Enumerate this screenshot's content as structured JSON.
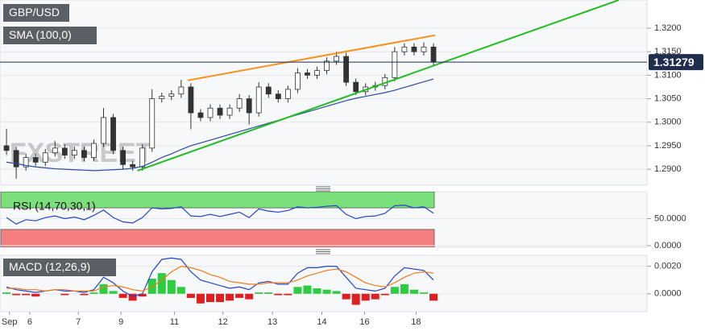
{
  "chart_data": [
    {
      "type": "candlestick",
      "title": "GBP/USD",
      "watermark": "FXSTREET",
      "color": "#333333",
      "grid": true,
      "xlim": [
        -0.67,
        66
      ],
      "ylim": [
        1.2866,
        1.326
      ],
      "yticks": [
        {
          "value": 1.29,
          "label": "1.2900"
        },
        {
          "value": 1.295,
          "label": "1.2950"
        },
        {
          "value": 1.3,
          "label": "1.3000"
        },
        {
          "value": 1.305,
          "label": "1.3050"
        },
        {
          "value": 1.31,
          "label": "1.3100"
        },
        {
          "value": 1.315,
          "label": "1.3150"
        },
        {
          "value": 1.32,
          "label": "1.3200"
        }
      ],
      "open": [
        1.295,
        1.294,
        1.2905,
        1.2925,
        1.2915,
        1.2935,
        1.2945,
        1.293,
        1.294,
        1.2925,
        1.2955,
        1.301,
        1.294,
        1.291,
        1.2905,
        1.2945,
        1.305,
        1.3055,
        1.306,
        1.3075,
        1.302,
        1.301,
        1.303,
        1.3015,
        1.303,
        1.305,
        1.302,
        1.3075,
        1.306,
        1.305,
        1.307,
        1.3105,
        1.31,
        1.311,
        1.313,
        1.314,
        1.3085,
        1.3065,
        1.3075,
        1.3078,
        1.3095,
        1.315,
        1.316,
        1.315,
        1.316
      ],
      "high": [
        1.2986,
        1.2948,
        1.2933,
        1.2933,
        1.2943,
        1.296,
        1.2953,
        1.2948,
        1.2948,
        1.2963,
        1.303,
        1.3018,
        1.2948,
        1.2918,
        1.2953,
        1.307,
        1.3063,
        1.3068,
        1.309,
        1.3083,
        1.3028,
        1.3038,
        1.3038,
        1.3038,
        1.306,
        1.3058,
        1.3085,
        1.3083,
        1.3068,
        1.3078,
        1.3115,
        1.3113,
        1.3118,
        1.3138,
        1.315,
        1.3148,
        1.3093,
        1.3083,
        1.3086,
        1.3103,
        1.316,
        1.3168,
        1.3168,
        1.317,
        1.3168
      ],
      "low": [
        1.293,
        1.288,
        1.2897,
        1.2907,
        1.2907,
        1.2927,
        1.2922,
        1.2922,
        1.2917,
        1.2917,
        1.2947,
        1.2932,
        1.29,
        1.2897,
        1.2897,
        1.2937,
        1.3042,
        1.3047,
        1.3052,
        1.2985,
        1.3002,
        1.3002,
        1.3007,
        1.3007,
        1.3022,
        1.2995,
        1.3012,
        1.3052,
        1.3042,
        1.3042,
        1.3062,
        1.3092,
        1.3092,
        1.3102,
        1.3122,
        1.3077,
        1.3058,
        1.3057,
        1.3067,
        1.307,
        1.3087,
        1.3142,
        1.3142,
        1.3142,
        1.312
      ],
      "close": [
        1.294,
        1.2905,
        1.2925,
        1.2915,
        1.2935,
        1.2945,
        1.293,
        1.294,
        1.2925,
        1.2955,
        1.301,
        1.294,
        1.291,
        1.2905,
        1.2945,
        1.305,
        1.3055,
        1.306,
        1.3075,
        1.302,
        1.301,
        1.303,
        1.3015,
        1.303,
        1.305,
        1.302,
        1.3075,
        1.306,
        1.305,
        1.307,
        1.3105,
        1.31,
        1.311,
        1.313,
        1.314,
        1.3085,
        1.3065,
        1.3075,
        1.3078,
        1.3095,
        1.315,
        1.316,
        1.315,
        1.316,
        1.31279
      ],
      "series": [
        {
          "name": "SMA (100,0)",
          "color": "#2b4aa0",
          "values": [
            1.2915,
            1.2912,
            1.2908,
            1.2905,
            1.2903,
            1.2901,
            1.29,
            1.2899,
            1.2898,
            1.2897,
            1.2898,
            1.2899,
            1.29,
            1.2902,
            1.2906,
            1.2915,
            1.2925,
            1.2933,
            1.2942,
            1.295,
            1.2956,
            1.2962,
            1.2968,
            1.2974,
            1.298,
            1.2986,
            1.2992,
            1.2998,
            1.3004,
            1.301,
            1.3016,
            1.3022,
            1.3028,
            1.3034,
            1.304,
            1.3046,
            1.3051,
            1.3055,
            1.3059,
            1.3063,
            1.3068,
            1.3074,
            1.308,
            1.3086,
            1.3092
          ]
        }
      ],
      "trendlines": [
        {
          "color": "#f7931e",
          "x": [
            18.67,
            44.17
          ],
          "y": [
            1.3089,
            1.3185
          ]
        },
        {
          "color": "#22bb22",
          "x": [
            13.5,
            63.1
          ],
          "y": [
            1.2897,
            1.326
          ]
        }
      ],
      "last_price": 1.31279,
      "last_price_color": "#1f2d4e"
    },
    {
      "type": "line",
      "grid": true,
      "xlim": [
        -0.67,
        66
      ],
      "ylim": [
        -3,
        100
      ],
      "yticks": [
        {
          "value": 0,
          "label": "0.0000"
        },
        {
          "value": 50,
          "label": "50.0000"
        }
      ],
      "bands": [
        {
          "from": 70,
          "to": 100,
          "color": "#7be07b"
        },
        {
          "from": -3,
          "to": 30,
          "color": "#f47f7f"
        }
      ],
      "series": [
        {
          "name": "RSI (14,70,30,1)",
          "color": "#2244cc",
          "values": [
            52,
            40,
            48,
            46,
            52,
            55,
            50,
            53,
            48,
            56,
            66,
            52,
            44,
            42,
            52,
            70,
            68,
            69,
            72,
            55,
            54,
            58,
            54,
            58,
            62,
            52,
            68,
            64,
            62,
            65,
            72,
            70,
            71,
            73,
            74,
            58,
            50,
            54,
            55,
            60,
            74,
            75,
            70,
            72,
            60
          ]
        }
      ]
    },
    {
      "type": "macd",
      "grid": true,
      "xlim": [
        -0.67,
        66
      ],
      "ylim": [
        -0.0013,
        0.0028
      ],
      "yticks": [
        {
          "value": 0,
          "label": "0.0000"
        },
        {
          "value": 0.002,
          "label": "0.0020"
        }
      ],
      "xticks": [
        {
          "value": 0.3,
          "label": "Sep"
        },
        {
          "value": 2.4,
          "label": "6"
        },
        {
          "value": 7.4,
          "label": "7"
        },
        {
          "value": 11.8,
          "label": "9"
        },
        {
          "value": 17.3,
          "label": "11"
        },
        {
          "value": 22.3,
          "label": "12"
        },
        {
          "value": 27.4,
          "label": "13"
        },
        {
          "value": 32.5,
          "label": "14"
        },
        {
          "value": 36.9,
          "label": "16"
        },
        {
          "value": 42.2,
          "label": "18"
        }
      ],
      "series": [
        {
          "name": "MACD (12,26,9)",
          "color": "#2244cc",
          "values": [
            0.0005,
            0.0003,
            0.0002,
            0.0001,
            0.0002,
            0.0003,
            0.0002,
            0.0002,
            0.0001,
            0.0003,
            0.0012,
            0.0008,
            0.0002,
            -0.0002,
            0.0,
            0.0016,
            0.0025,
            0.0026,
            0.0025,
            0.0016,
            0.001,
            0.0008,
            0.0006,
            0.0004,
            0.0005,
            0.0003,
            0.0008,
            0.0009,
            0.0007,
            0.0007,
            0.0015,
            0.0019,
            0.0019,
            0.002,
            0.002,
            0.0012,
            0.0004,
            0.0003,
            0.0002,
            0.0004,
            0.0013,
            0.0019,
            0.0018,
            0.0017,
            0.001
          ]
        },
        {
          "color": "#f07a1a",
          "values": [
            0.0004,
            0.0004,
            0.0003,
            0.0003,
            0.0002,
            0.0003,
            0.0003,
            0.0002,
            0.0002,
            0.0002,
            0.0005,
            0.0006,
            0.0005,
            0.0003,
            0.0002,
            0.0005,
            0.001,
            0.0016,
            0.002,
            0.0019,
            0.0017,
            0.0014,
            0.0012,
            0.0009,
            0.0008,
            0.0007,
            0.0007,
            0.0008,
            0.0008,
            0.0008,
            0.001,
            0.0013,
            0.0015,
            0.0017,
            0.0018,
            0.0016,
            0.0012,
            0.0008,
            0.0006,
            0.0005,
            0.0008,
            0.0012,
            0.0015,
            0.0016,
            0.0015
          ]
        }
      ],
      "histogram": {
        "up_color": "#2ecc40",
        "down_color": "#e02020",
        "values": [
          0.0001,
          -0.0001,
          -0.0001,
          -0.0002,
          0.0,
          0.0,
          -0.0001,
          0.0,
          -0.0001,
          0.0001,
          0.0007,
          0.0002,
          -0.0003,
          -0.0005,
          -0.0002,
          0.0011,
          0.0015,
          0.001,
          0.0005,
          -0.0003,
          -0.0007,
          -0.0006,
          -0.0006,
          -0.0005,
          -0.0003,
          -0.0004,
          0.0001,
          0.0001,
          -0.0001,
          -0.0001,
          0.0005,
          0.0006,
          0.0004,
          0.0003,
          0.0002,
          -0.0004,
          -0.0008,
          -0.0005,
          -0.0004,
          -0.0001,
          0.0005,
          0.0007,
          0.0003,
          0.0001,
          -0.0005
        ]
      }
    }
  ]
}
